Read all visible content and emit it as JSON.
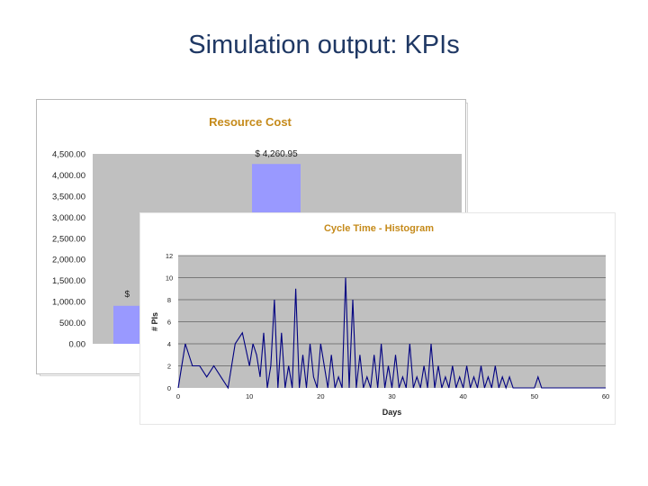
{
  "slide": {
    "title": "Simulation output: KPIs"
  },
  "chart_data": [
    {
      "type": "bar",
      "title": "Resource Cost",
      "categories": [
        "",
        ""
      ],
      "values": [
        900,
        4260.95
      ],
      "data_labels": [
        "$",
        "$ 4,260.95"
      ],
      "ylim": [
        0,
        4500
      ],
      "y_ticks": [
        "0.00",
        "500.00",
        "1,000.00",
        "1,500.00",
        "2,000.00",
        "2,500.00",
        "3,000.00",
        "3,500.00",
        "4,000.00",
        "4,500.00"
      ],
      "grid": false,
      "colors": {
        "bar": "#9999ff",
        "plot_bg": "#c0c0c0",
        "title": "#c58a1a"
      }
    },
    {
      "type": "line",
      "title": "Cycle Time - Histogram",
      "xlabel": "Days",
      "ylabel": "# PIs",
      "xlim": [
        0,
        60
      ],
      "ylim": [
        0,
        12
      ],
      "x_ticks": [
        "0",
        "10",
        "20",
        "30",
        "40",
        "50",
        "60"
      ],
      "y_ticks": [
        "0",
        "2",
        "4",
        "6",
        "8",
        "10",
        "12"
      ],
      "grid": true,
      "colors": {
        "line": "#000080",
        "plot_bg": "#c0c0c0",
        "grid": "#333333",
        "title": "#c58a1a"
      },
      "series": [
        {
          "x": [
            0,
            1,
            2,
            3,
            4,
            5,
            6,
            7,
            8,
            9,
            10,
            10.5,
            11,
            11.5,
            12,
            12.5,
            13,
            13.5,
            14,
            14.5,
            15,
            15.5,
            16,
            16.5,
            17,
            17.5,
            18,
            18.5,
            19,
            19.5,
            20,
            20.5,
            21,
            21.5,
            22,
            22.5,
            23,
            23.5,
            24,
            24.5,
            25,
            25.5,
            26,
            26.5,
            27,
            27.5,
            28,
            28.5,
            29,
            29.5,
            30,
            30.5,
            31,
            31.5,
            32,
            32.5,
            33,
            33.5,
            34,
            34.5,
            35,
            35.5,
            36,
            36.5,
            37,
            37.5,
            38,
            38.5,
            39,
            39.5,
            40,
            40.5,
            41,
            41.5,
            42,
            42.5,
            43,
            43.5,
            44,
            44.5,
            45,
            45.5,
            46,
            46.5,
            47,
            47.5,
            48,
            48.5,
            49,
            49.5,
            50,
            50.5,
            51,
            51.5,
            52,
            52.5,
            53,
            53.5,
            54,
            54.5,
            55,
            55.5,
            56,
            56.5,
            57,
            57.5,
            58,
            58.5,
            59,
            59.5,
            60
          ],
          "y": [
            0,
            4,
            2,
            2,
            1,
            2,
            1,
            0,
            4,
            5,
            2,
            4,
            3,
            1,
            5,
            0,
            2,
            8,
            0,
            5,
            0,
            2,
            0,
            9,
            0,
            3,
            0,
            4,
            1,
            0,
            4,
            2,
            0,
            3,
            0,
            1,
            0,
            10,
            0,
            8,
            0,
            3,
            0,
            1,
            0,
            3,
            0,
            4,
            0,
            2,
            0,
            3,
            0,
            1,
            0,
            4,
            0,
            1,
            0,
            2,
            0,
            4,
            0,
            2,
            0,
            1,
            0,
            2,
            0,
            1,
            0,
            2,
            0,
            1,
            0,
            2,
            0,
            1,
            0,
            2,
            0,
            1,
            0,
            1,
            0,
            0,
            0,
            0,
            0,
            0,
            0,
            1,
            0,
            0,
            0,
            0,
            0,
            0,
            0,
            0,
            0,
            0,
            0,
            0,
            0,
            0,
            0,
            0,
            0,
            0,
            0
          ]
        }
      ]
    }
  ]
}
